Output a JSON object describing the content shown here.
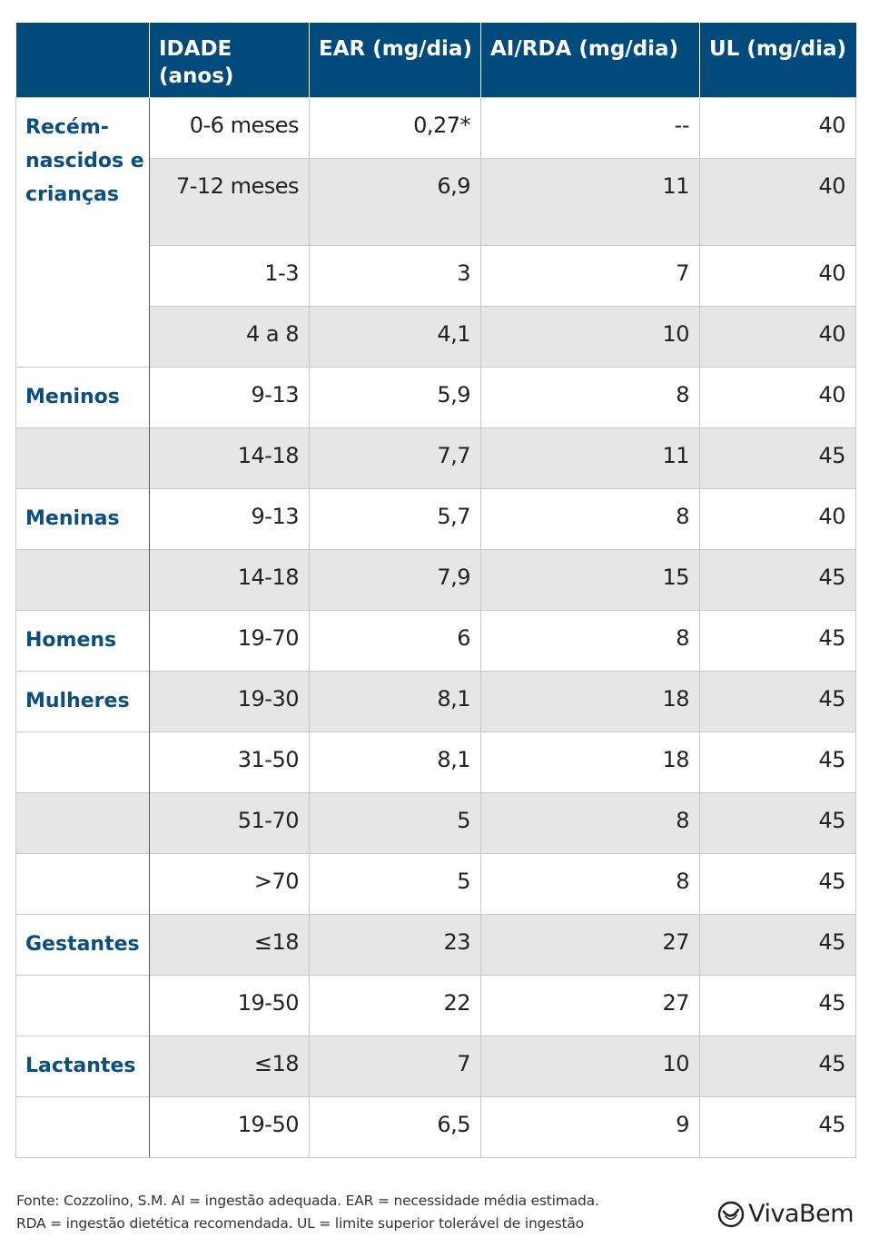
{
  "headers": [
    "",
    "IDADE (anos)",
    "EAR (mg/dia)",
    "AI/RDA (mg/dia)",
    "UL (mg/dia)"
  ],
  "groups": [
    {
      "label": "Recém-nascidos e crianças",
      "rows": [
        {
          "age": "0-6 meses",
          "ear": "0,27*",
          "ai": "--",
          "ul": "40"
        },
        {
          "age": "7-12 meses",
          "ear": "6,9",
          "ai": "11",
          "ul": "40"
        },
        {
          "age": "1-3",
          "ear": "3",
          "ai": "7",
          "ul": "40"
        },
        {
          "age": "4 a 8",
          "ear": "4,1",
          "ai": "10",
          "ul": "40"
        }
      ]
    },
    {
      "label": "Meninos",
      "rows": [
        {
          "age": "9-13",
          "ear": "5,9",
          "ai": "8",
          "ul": "40"
        },
        {
          "age": "14-18",
          "ear": "7,7",
          "ai": "11",
          "ul": "45"
        }
      ]
    },
    {
      "label": "Meninas",
      "rows": [
        {
          "age": "9-13",
          "ear": "5,7",
          "ai": "8",
          "ul": "40"
        },
        {
          "age": "14-18",
          "ear": "7,9",
          "ai": "15",
          "ul": "45"
        }
      ]
    },
    {
      "label": "Homens",
      "rows": [
        {
          "age": "19-70",
          "ear": "6",
          "ai": "8",
          "ul": "45"
        }
      ]
    },
    {
      "label": "Mulheres",
      "rows": [
        {
          "age": "19-30",
          "ear": "8,1",
          "ai": "18",
          "ul": "45"
        },
        {
          "age": "31-50",
          "ear": "8,1",
          "ai": "18",
          "ul": "45"
        },
        {
          "age": "51-70",
          "ear": "5",
          "ai": "8",
          "ul": "45"
        },
        {
          "age": ">70",
          "ear": "5",
          "ai": "8",
          "ul": "45"
        }
      ]
    },
    {
      "label": "Gestantes",
      "rows": [
        {
          "age": "≤18",
          "ear": "23",
          "ai": "27",
          "ul": "45"
        },
        {
          "age": "19-50",
          "ear": "22",
          "ai": "27",
          "ul": "45"
        }
      ]
    },
    {
      "label": "Lactantes",
      "rows": [
        {
          "age": "≤18",
          "ear": "7",
          "ai": "10",
          "ul": "45"
        },
        {
          "age": "19-50",
          "ear": "6,5",
          "ai": "9",
          "ul": "45"
        }
      ]
    }
  ],
  "footnote": {
    "line1": "Fonte: Cozzolino, S.M. AI = ingestão adequada. EAR = necessidade média estimada.",
    "line2": "RDA = ingestão dietética recomendada. UL = limite superior tolerável de ingestão"
  },
  "logo": {
    "text": "VivaBem",
    "icon": "vivabem-logo-icon"
  }
}
